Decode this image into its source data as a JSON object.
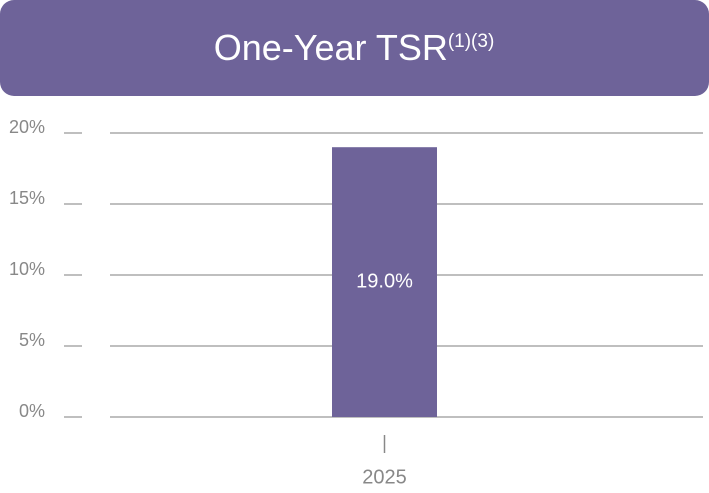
{
  "chart_data": {
    "type": "bar",
    "title": "One-Year TSR",
    "title_superscript": "(1)(3)",
    "categories": [
      "2025"
    ],
    "values": [
      19.0
    ],
    "value_labels": [
      "19.0%"
    ],
    "color": "#6e6399",
    "ylim": [
      0,
      20
    ],
    "yticks": [
      {
        "value": 0,
        "label": "0%"
      },
      {
        "value": 5,
        "label": "5%"
      },
      {
        "value": 10,
        "label": "10%"
      },
      {
        "value": 15,
        "label": "15%"
      },
      {
        "value": 20,
        "label": "20%"
      }
    ],
    "grid": true
  }
}
